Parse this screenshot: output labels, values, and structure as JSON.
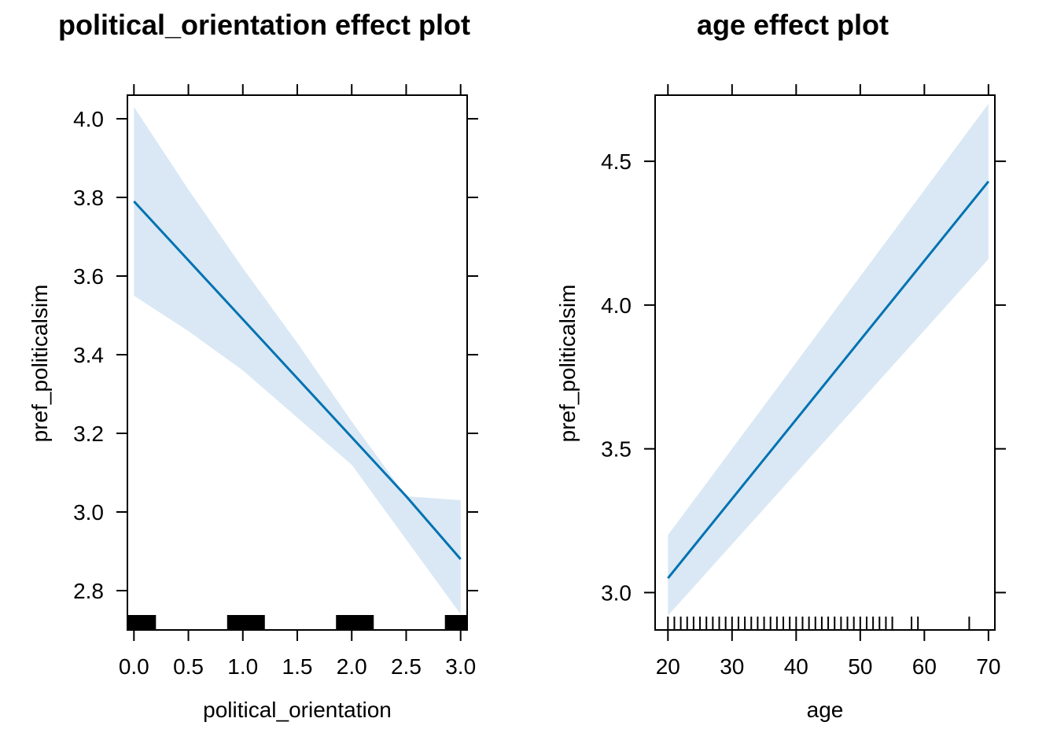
{
  "chart_data": [
    {
      "type": "line",
      "title": "political_orientation effect plot",
      "xlabel": "political_orientation",
      "ylabel": "pref_politicalsim",
      "xlim": [
        -0.06,
        3.06
      ],
      "ylim": [
        2.7,
        4.06
      ],
      "x_ticks": [
        0.0,
        0.5,
        1.0,
        1.5,
        2.0,
        2.5,
        3.0
      ],
      "x_tick_labels": [
        "0.0",
        "0.5",
        "1.0",
        "1.5",
        "2.0",
        "2.5",
        "3.0"
      ],
      "y_ticks": [
        2.8,
        3.0,
        3.2,
        3.4,
        3.6,
        3.8,
        4.0
      ],
      "y_tick_labels": [
        "2.8",
        "3.0",
        "3.2",
        "3.4",
        "3.6",
        "3.8",
        "4.0"
      ],
      "line": {
        "x": [
          0,
          0.5,
          1.0,
          1.5,
          2.0,
          2.5,
          3.0
        ],
        "y": [
          3.79,
          3.64,
          3.49,
          3.34,
          3.19,
          3.04,
          2.88
        ]
      },
      "band_upper": [
        4.03,
        3.82,
        3.62,
        3.43,
        3.23,
        3.04,
        3.03
      ],
      "band_lower": [
        3.55,
        3.46,
        3.36,
        3.24,
        3.12,
        2.93,
        2.74
      ],
      "rug": [
        0,
        1,
        2,
        3
      ],
      "grid": false,
      "colors": {
        "line": "#0072b2",
        "band": "#d9e8f4",
        "rug": "#000000"
      }
    },
    {
      "type": "line",
      "title": "age effect plot",
      "xlabel": "age",
      "ylabel": "pref_politicalsim",
      "xlim": [
        18.0,
        71.0
      ],
      "ylim": [
        2.87,
        4.73
      ],
      "x_ticks": [
        20,
        30,
        40,
        50,
        60,
        70
      ],
      "x_tick_labels": [
        "20",
        "30",
        "40",
        "50",
        "60",
        "70"
      ],
      "y_ticks": [
        3.0,
        3.5,
        4.0,
        4.5
      ],
      "y_tick_labels": [
        "3.0",
        "3.5",
        "4.0",
        "4.5"
      ],
      "line": {
        "x": [
          20,
          70
        ],
        "y": [
          3.05,
          4.43
        ]
      },
      "band_upper": [
        3.2,
        4.7
      ],
      "band_lower": [
        2.92,
        4.16
      ],
      "rug": [
        20,
        21,
        22,
        23,
        24,
        25,
        26,
        27,
        28,
        29,
        30,
        31,
        32,
        33,
        34,
        35,
        36,
        37,
        38,
        39,
        40,
        41,
        42,
        43,
        44,
        45,
        46,
        47,
        48,
        49,
        50,
        51,
        52,
        53,
        54,
        55,
        58,
        59,
        67
      ],
      "grid": false,
      "colors": {
        "line": "#0072b2",
        "band": "#d9e8f4",
        "rug": "#000000"
      }
    }
  ]
}
